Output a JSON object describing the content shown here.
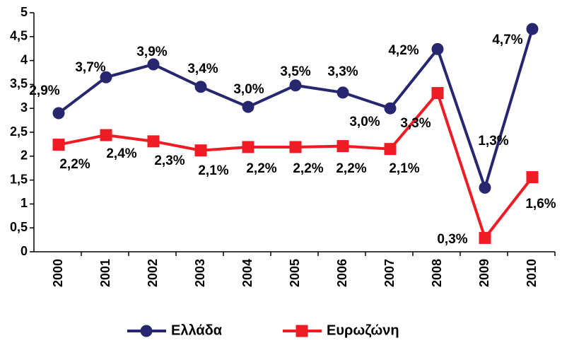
{
  "chart_data": {
    "type": "line",
    "categories": [
      "2000",
      "2001",
      "2002",
      "2003",
      "2004",
      "2005",
      "2006",
      "2007",
      "2008",
      "2009",
      "2010"
    ],
    "series": [
      {
        "name": "Ελλάδα",
        "color": "#27276f",
        "marker": "circle",
        "values": [
          2.9,
          3.65,
          3.92,
          3.45,
          3.03,
          3.48,
          3.33,
          3.0,
          4.24,
          1.34,
          4.66
        ],
        "value_labels": [
          "2,9%",
          "3,7%",
          "3,9%",
          "3,4%",
          "3,0%",
          "3,5%",
          "3,3%",
          "3,0%",
          "4,2%",
          "1,3%",
          "4,7%"
        ]
      },
      {
        "name": "Ευρωζώνη",
        "color": "#ee1c24",
        "marker": "square",
        "values": [
          2.24,
          2.44,
          2.31,
          2.12,
          2.19,
          2.19,
          2.21,
          2.15,
          3.32,
          0.29,
          1.56
        ],
        "value_labels": [
          "2,2%",
          "2,4%",
          "2,3%",
          "2,1%",
          "2,2%",
          "2,2%",
          "2,2%",
          "2,1%",
          "3,3%",
          "0,3%",
          "1,6%"
        ]
      }
    ],
    "ylim": [
      0,
      5
    ],
    "yticks": [
      0,
      {
        "value": 0.5,
        "label": "0,5"
      },
      1,
      {
        "value": 1.5,
        "label": "1,5"
      },
      2,
      {
        "value": 2.5,
        "label": "2,5"
      },
      3,
      {
        "value": 3.5,
        "label": "3,5"
      },
      4,
      {
        "value": 4.5,
        "label": "4,5"
      },
      5
    ],
    "legend": "bottom"
  }
}
